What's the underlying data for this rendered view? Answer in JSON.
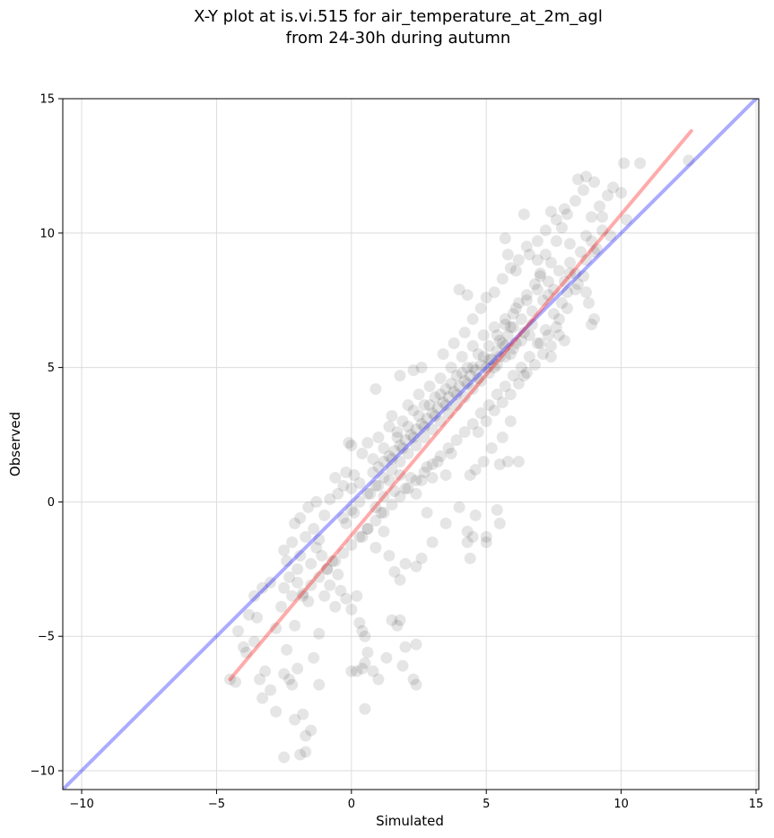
{
  "chart_data": {
    "type": "scatter",
    "title_line1": "X-Y plot at is.vi.515 for air_temperature_at_2m_agl",
    "title_line2": "from 24-30h during autumn",
    "xlabel": "Simulated",
    "ylabel": "Observed",
    "xlim": [
      -10.7,
      15.1
    ],
    "ylim": [
      -10.7,
      15.0
    ],
    "xticks": [
      -10,
      -5,
      0,
      5,
      10,
      15
    ],
    "yticks": [
      -10,
      -5,
      0,
      5,
      10,
      15
    ],
    "xtick_labels": [
      "−10",
      "−5",
      "0",
      "5",
      "10",
      "15"
    ],
    "ytick_labels": [
      "−10",
      "−5",
      "0",
      "5",
      "10",
      "15"
    ],
    "grid": true,
    "identity_line": {
      "x": [
        -10.7,
        15.1
      ],
      "y": [
        -10.7,
        15.1
      ],
      "color": "#0000ff",
      "opacity": 0.33
    },
    "regression_line": {
      "x": [
        -4.5,
        12.6
      ],
      "y": [
        -6.6,
        13.8
      ],
      "color": "#ff0000",
      "opacity": 0.33
    },
    "point_color": "#000000",
    "point_opacity": 0.1,
    "points": [
      [
        -4.5,
        -6.6
      ],
      [
        -4.3,
        -6.7
      ],
      [
        -4.0,
        -5.4
      ],
      [
        -3.9,
        -5.6
      ],
      [
        -4.2,
        -4.8
      ],
      [
        -3.8,
        -4.2
      ],
      [
        -3.6,
        -3.5
      ],
      [
        -3.3,
        -3.2
      ],
      [
        -3.0,
        -3.0
      ],
      [
        -3.5,
        -4.3
      ],
      [
        -3.4,
        -6.6
      ],
      [
        -3.2,
        -6.3
      ],
      [
        -3.0,
        -7.0
      ],
      [
        -3.3,
        -7.3
      ],
      [
        -2.8,
        -7.8
      ],
      [
        -3.6,
        -5.2
      ],
      [
        -2.5,
        -6.4
      ],
      [
        -2.3,
        -6.6
      ],
      [
        -2.0,
        -6.2
      ],
      [
        -2.2,
        -6.8
      ],
      [
        -2.1,
        -8.1
      ],
      [
        -1.8,
        -7.9
      ],
      [
        -1.7,
        -8.7
      ],
      [
        -1.5,
        -8.5
      ],
      [
        -2.5,
        -9.5
      ],
      [
        -1.9,
        -9.4
      ],
      [
        -1.7,
        -9.3
      ],
      [
        -1.2,
        -6.8
      ],
      [
        -1.4,
        -5.8
      ],
      [
        -2.4,
        -5.5
      ],
      [
        -2.1,
        -4.6
      ],
      [
        -2.8,
        -4.7
      ],
      [
        -2.6,
        -3.9
      ],
      [
        -2.2,
        -3.5
      ],
      [
        -2.5,
        -3.2
      ],
      [
        -2.0,
        -3.0
      ],
      [
        -1.8,
        -3.4
      ],
      [
        -1.6,
        -3.7
      ],
      [
        -2.3,
        -2.8
      ],
      [
        -2.0,
        -2.5
      ],
      [
        -2.4,
        -2.2
      ],
      [
        -2.5,
        -1.8
      ],
      [
        -2.2,
        -1.5
      ],
      [
        -1.9,
        -2.0
      ],
      [
        -1.5,
        -2.3
      ],
      [
        -1.3,
        -1.7
      ],
      [
        -1.1,
        -2.0
      ],
      [
        -1.7,
        -1.3
      ],
      [
        -1.4,
        -1.0
      ],
      [
        -1.2,
        -1.4
      ],
      [
        -0.9,
        -2.5
      ],
      [
        -0.7,
        -2.2
      ],
      [
        -0.5,
        -2.7
      ],
      [
        -0.8,
        -3.1
      ],
      [
        -1.0,
        -3.5
      ],
      [
        -1.2,
        -4.9
      ],
      [
        -0.6,
        -3.9
      ],
      [
        -0.4,
        -3.3
      ],
      [
        -0.2,
        -3.6
      ],
      [
        0.0,
        -4.0
      ],
      [
        0.2,
        -3.5
      ],
      [
        0.3,
        -4.5
      ],
      [
        0.4,
        -4.8
      ],
      [
        0.5,
        -5.0
      ],
      [
        0.6,
        -5.6
      ],
      [
        0.5,
        -6.0
      ],
      [
        0.4,
        -6.2
      ],
      [
        0.2,
        -6.3
      ],
      [
        0.0,
        -6.3
      ],
      [
        0.8,
        -6.3
      ],
      [
        1.0,
        -6.6
      ],
      [
        1.3,
        -5.8
      ],
      [
        1.5,
        -4.4
      ],
      [
        1.7,
        -4.6
      ],
      [
        1.8,
        -4.4
      ],
      [
        2.0,
        -5.4
      ],
      [
        2.3,
        -6.6
      ],
      [
        1.9,
        -6.1
      ],
      [
        2.4,
        -6.8
      ],
      [
        0.5,
        -7.7
      ],
      [
        2.4,
        -5.3
      ],
      [
        2.4,
        -2.4
      ],
      [
        2.6,
        -2.1
      ],
      [
        3.0,
        -1.5
      ],
      [
        2.8,
        -0.4
      ],
      [
        3.5,
        -0.8
      ],
      [
        4.0,
        -0.2
      ],
      [
        4.3,
        -1.1
      ],
      [
        4.3,
        -1.5
      ],
      [
        4.5,
        -1.3
      ],
      [
        4.4,
        -2.1
      ],
      [
        5.0,
        -1.3
      ],
      [
        5.0,
        -1.5
      ],
      [
        5.5,
        -0.8
      ],
      [
        5.4,
        -0.3
      ],
      [
        4.6,
        -0.5
      ],
      [
        -1.9,
        -0.6
      ],
      [
        -2.1,
        -0.8
      ],
      [
        -1.6,
        -0.2
      ],
      [
        -1.3,
        0.0
      ],
      [
        -1.0,
        -0.5
      ],
      [
        -0.8,
        0.1
      ],
      [
        -0.5,
        0.3
      ],
      [
        -0.3,
        0.6
      ],
      [
        -0.6,
        0.9
      ],
      [
        -0.2,
        1.1
      ],
      [
        0.0,
        0.5
      ],
      [
        0.1,
        1.0
      ],
      [
        0.3,
        0.7
      ],
      [
        0.1,
        -0.4
      ],
      [
        -0.2,
        -0.8
      ],
      [
        0.4,
        -1.3
      ],
      [
        0.6,
        -1.0
      ],
      [
        0.9,
        -1.7
      ],
      [
        1.2,
        -1.1
      ],
      [
        1.4,
        -2.0
      ],
      [
        1.6,
        -2.6
      ],
      [
        1.8,
        -2.9
      ],
      [
        2.0,
        -2.3
      ],
      [
        1.1,
        -0.4
      ],
      [
        0.9,
        -0.2
      ],
      [
        0.7,
        0.3
      ],
      [
        1.0,
        0.6
      ],
      [
        1.2,
        0.2
      ],
      [
        1.4,
        0.8
      ],
      [
        1.6,
        0.4
      ],
      [
        1.8,
        1.0
      ],
      [
        2.0,
        0.5
      ],
      [
        2.2,
        0.9
      ],
      [
        2.4,
        0.3
      ],
      [
        2.6,
        0.8
      ],
      [
        2.8,
        1.3
      ],
      [
        3.0,
        0.9
      ],
      [
        3.2,
        1.5
      ],
      [
        3.5,
        1.0
      ],
      [
        3.7,
        1.8
      ],
      [
        -0.1,
        2.2
      ],
      [
        0.0,
        2.1
      ],
      [
        0.4,
        1.8
      ],
      [
        0.6,
        2.2
      ],
      [
        0.8,
        1.6
      ],
      [
        1.0,
        2.4
      ],
      [
        1.2,
        2.0
      ],
      [
        1.4,
        2.8
      ],
      [
        1.5,
        3.2
      ],
      [
        1.7,
        2.6
      ],
      [
        1.9,
        3.0
      ],
      [
        2.1,
        3.6
      ],
      [
        2.3,
        3.4
      ],
      [
        2.5,
        4.0
      ],
      [
        2.7,
        3.6
      ],
      [
        2.9,
        4.3
      ],
      [
        3.1,
        3.9
      ],
      [
        3.3,
        4.6
      ],
      [
        3.5,
        4.2
      ],
      [
        3.7,
        5.0
      ],
      [
        3.9,
        4.7
      ],
      [
        4.1,
        5.4
      ],
      [
        4.3,
        5.0
      ],
      [
        4.5,
        5.8
      ],
      [
        4.7,
        5.5
      ],
      [
        4.9,
        6.2
      ],
      [
        5.1,
        5.8
      ],
      [
        5.3,
        6.5
      ],
      [
        5.5,
        6.0
      ],
      [
        5.7,
        6.8
      ],
      [
        5.9,
        6.5
      ],
      [
        6.1,
        7.2
      ],
      [
        6.3,
        6.8
      ],
      [
        6.5,
        7.5
      ],
      [
        6.7,
        7.1
      ],
      [
        6.9,
        7.9
      ],
      [
        7.1,
        7.5
      ],
      [
        7.3,
        8.2
      ],
      [
        7.5,
        7.9
      ],
      [
        7.7,
        8.6
      ],
      [
        7.9,
        8.2
      ],
      [
        8.1,
        8.9
      ],
      [
        8.3,
        8.5
      ],
      [
        8.5,
        9.3
      ],
      [
        8.7,
        9.0
      ],
      [
        8.9,
        9.7
      ],
      [
        9.1,
        9.4
      ],
      [
        9.3,
        10.1
      ],
      [
        0.9,
        4.2
      ],
      [
        1.8,
        4.7
      ],
      [
        2.3,
        4.9
      ],
      [
        2.6,
        5.0
      ],
      [
        3.4,
        5.5
      ],
      [
        3.8,
        5.9
      ],
      [
        4.2,
        6.3
      ],
      [
        4.5,
        6.8
      ],
      [
        4.8,
        7.2
      ],
      [
        5.0,
        7.6
      ],
      [
        4.3,
        7.7
      ],
      [
        4.0,
        7.9
      ],
      [
        5.3,
        7.8
      ],
      [
        5.6,
        8.3
      ],
      [
        5.9,
        8.7
      ],
      [
        6.2,
        9.0
      ],
      [
        6.5,
        9.5
      ],
      [
        6.9,
        9.7
      ],
      [
        7.2,
        10.1
      ],
      [
        7.6,
        10.5
      ],
      [
        7.9,
        10.9
      ],
      [
        8.3,
        11.2
      ],
      [
        8.6,
        11.6
      ],
      [
        9.0,
        11.9
      ],
      [
        8.4,
        12.0
      ],
      [
        8.7,
        12.1
      ],
      [
        10.1,
        12.6
      ],
      [
        10.7,
        12.6
      ],
      [
        12.5,
        12.7
      ],
      [
        9.7,
        11.7
      ],
      [
        10.0,
        11.5
      ],
      [
        9.5,
        11.4
      ],
      [
        9.2,
        11.0
      ],
      [
        9.3,
        10.6
      ],
      [
        8.9,
        10.6
      ],
      [
        8.7,
        9.9
      ],
      [
        9.6,
        9.9
      ],
      [
        10.2,
        10.5
      ],
      [
        9.0,
        9.3
      ],
      [
        8.1,
        9.6
      ],
      [
        7.6,
        9.7
      ],
      [
        7.2,
        9.2
      ],
      [
        6.9,
        9.0
      ],
      [
        6.6,
        9.2
      ],
      [
        6.1,
        8.6
      ],
      [
        5.8,
        9.2
      ],
      [
        5.7,
        9.8
      ],
      [
        6.4,
        10.7
      ],
      [
        8.0,
        10.7
      ],
      [
        7.4,
        10.8
      ],
      [
        7.8,
        10.2
      ],
      [
        7.0,
        8.5
      ],
      [
        7.4,
        8.9
      ],
      [
        8.1,
        8.5
      ],
      [
        8.4,
        8.1
      ],
      [
        8.6,
        8.4
      ],
      [
        8.3,
        7.9
      ],
      [
        8.8,
        7.4
      ],
      [
        9.0,
        6.8
      ],
      [
        8.9,
        6.6
      ],
      [
        8.7,
        7.8
      ],
      [
        8.0,
        7.2
      ],
      [
        7.7,
        6.8
      ],
      [
        7.3,
        6.2
      ],
      [
        7.0,
        5.9
      ],
      [
        6.6,
        5.4
      ],
      [
        6.3,
        5.0
      ],
      [
        6.0,
        4.7
      ],
      [
        5.7,
        4.3
      ],
      [
        5.4,
        4.0
      ],
      [
        5.1,
        3.6
      ],
      [
        4.8,
        3.3
      ],
      [
        4.5,
        2.9
      ],
      [
        4.2,
        2.6
      ],
      [
        3.9,
        2.3
      ],
      [
        3.6,
        2.0
      ],
      [
        3.3,
        1.7
      ],
      [
        3.0,
        1.4
      ],
      [
        2.7,
        1.1
      ],
      [
        2.4,
        0.8
      ],
      [
        2.1,
        0.5
      ],
      [
        1.8,
        0.2
      ],
      [
        1.5,
        -0.1
      ],
      [
        1.2,
        -0.4
      ],
      [
        0.9,
        -0.7
      ],
      [
        0.6,
        -1.0
      ],
      [
        0.3,
        -1.3
      ],
      [
        0.0,
        -1.6
      ],
      [
        -0.3,
        -1.9
      ],
      [
        -0.6,
        -2.2
      ],
      [
        -0.9,
        -2.5
      ],
      [
        -1.2,
        -2.8
      ],
      [
        -1.5,
        -3.1
      ],
      [
        -1.8,
        -3.5
      ],
      [
        6.4,
        4.7
      ],
      [
        5.9,
        3.0
      ],
      [
        5.6,
        2.4
      ],
      [
        5.2,
        2.0
      ],
      [
        4.9,
        1.5
      ],
      [
        4.6,
        1.2
      ],
      [
        4.4,
        1.0
      ],
      [
        5.8,
        1.5
      ],
      [
        6.2,
        1.5
      ],
      [
        5.5,
        1.4
      ],
      [
        4.7,
        2.6
      ],
      [
        5.0,
        3.0
      ],
      [
        5.3,
        3.4
      ],
      [
        5.6,
        3.7
      ],
      [
        5.9,
        4.0
      ],
      [
        6.2,
        4.4
      ],
      [
        6.5,
        4.8
      ],
      [
        6.8,
        5.1
      ],
      [
        7.1,
        5.5
      ],
      [
        7.4,
        5.8
      ],
      [
        7.7,
        6.2
      ],
      [
        7.4,
        5.4
      ],
      [
        6.9,
        5.9
      ],
      [
        6.6,
        6.2
      ],
      [
        6.3,
        6.0
      ],
      [
        6.0,
        5.7
      ],
      [
        5.7,
        5.4
      ],
      [
        5.4,
        5.1
      ],
      [
        5.1,
        4.8
      ],
      [
        4.8,
        4.5
      ],
      [
        4.5,
        4.2
      ],
      [
        4.2,
        3.9
      ],
      [
        3.9,
        3.6
      ],
      [
        3.6,
        3.3
      ],
      [
        3.3,
        3.0
      ],
      [
        3.0,
        2.7
      ],
      [
        2.7,
        2.4
      ],
      [
        2.4,
        2.1
      ],
      [
        2.1,
        1.8
      ],
      [
        1.8,
        1.5
      ],
      [
        1.5,
        1.2
      ],
      [
        1.2,
        0.9
      ],
      [
        0.9,
        0.6
      ],
      [
        0.6,
        0.3
      ],
      [
        0.3,
        0.0
      ],
      [
        0.0,
        -0.3
      ],
      [
        -0.3,
        -0.6
      ],
      [
        5.0,
        5.0
      ],
      [
        5.2,
        5.3
      ],
      [
        5.4,
        5.6
      ],
      [
        5.6,
        5.9
      ],
      [
        5.8,
        6.2
      ],
      [
        6.0,
        6.5
      ],
      [
        4.8,
        5.1
      ],
      [
        4.6,
        4.9
      ],
      [
        4.4,
        4.7
      ],
      [
        4.2,
        4.5
      ],
      [
        4.0,
        4.3
      ],
      [
        3.8,
        4.1
      ],
      [
        3.6,
        3.9
      ],
      [
        3.4,
        3.7
      ],
      [
        3.2,
        3.5
      ],
      [
        3.0,
        3.3
      ],
      [
        2.8,
        3.1
      ],
      [
        2.6,
        2.9
      ],
      [
        2.4,
        2.7
      ],
      [
        2.2,
        2.5
      ],
      [
        2.0,
        2.3
      ],
      [
        1.8,
        2.1
      ],
      [
        1.6,
        1.9
      ],
      [
        1.4,
        1.7
      ],
      [
        1.2,
        1.5
      ],
      [
        1.0,
        1.3
      ],
      [
        0.8,
        1.1
      ],
      [
        5.1,
        5.3
      ],
      [
        5.3,
        5.0
      ],
      [
        5.5,
        5.4
      ],
      [
        5.7,
        5.8
      ],
      [
        5.9,
        5.5
      ],
      [
        6.1,
        5.9
      ],
      [
        4.9,
        5.4
      ],
      [
        4.7,
        4.6
      ],
      [
        4.5,
        5.0
      ],
      [
        4.3,
        4.4
      ],
      [
        4.1,
        4.8
      ],
      [
        3.9,
        4.0
      ],
      [
        3.7,
        4.4
      ],
      [
        3.5,
        3.6
      ],
      [
        3.3,
        4.0
      ],
      [
        3.1,
        3.2
      ],
      [
        2.9,
        3.6
      ],
      [
        2.7,
        2.8
      ],
      [
        2.5,
        3.2
      ],
      [
        2.3,
        2.4
      ],
      [
        2.1,
        2.8
      ],
      [
        1.9,
        2.0
      ],
      [
        1.7,
        2.4
      ],
      [
        1.5,
        1.6
      ],
      [
        6.2,
        7.4
      ],
      [
        6.5,
        7.7
      ],
      [
        6.8,
        8.1
      ],
      [
        7.0,
        8.4
      ],
      [
        7.3,
        7.7
      ],
      [
        6.0,
        7.0
      ],
      [
        5.7,
        6.6
      ],
      [
        5.4,
        6.2
      ],
      [
        7.5,
        7.0
      ],
      [
        7.8,
        7.4
      ],
      [
        8.0,
        7.8
      ],
      [
        7.6,
        6.5
      ],
      [
        7.9,
        6.0
      ],
      [
        7.2,
        6.4
      ],
      [
        6.7,
        6.6
      ],
      [
        6.4,
        6.3
      ]
    ]
  }
}
